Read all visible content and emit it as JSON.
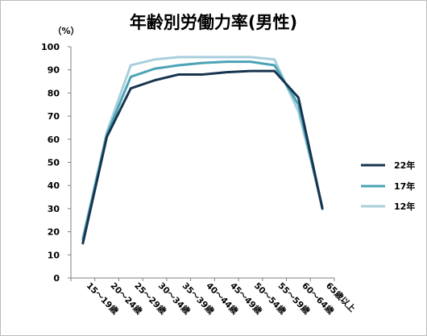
{
  "chart_data": {
    "type": "line",
    "title": "年齢別労働力率(男性)",
    "unit_label": "（%）",
    "ylim": [
      0,
      100
    ],
    "yticks": [
      0,
      10,
      20,
      30,
      40,
      50,
      60,
      70,
      80,
      90,
      100
    ],
    "grid": false,
    "legend_position": "right",
    "categories": [
      "15～19歳",
      "20～24歳",
      "25～29歳",
      "30～34歳",
      "35～39歳",
      "40～44歳",
      "45～49歳",
      "50～54歳",
      "55～59歳",
      "60～64歳",
      "65歳以上"
    ],
    "series": [
      {
        "name": "22年",
        "color": "#17344f",
        "values": [
          15,
          61,
          82,
          85.5,
          88,
          88,
          89,
          89.5,
          89.5,
          78,
          30
        ]
      },
      {
        "name": "17年",
        "color": "#4ba3b5",
        "values": [
          16.5,
          62,
          87,
          90.5,
          92,
          93,
          93.5,
          93.5,
          92,
          75,
          30
        ]
      },
      {
        "name": "12年",
        "color": "#a8cfdd",
        "values": [
          17.5,
          63,
          92,
          94.5,
          95.5,
          95.5,
          95.5,
          95.5,
          94.5,
          72,
          31
        ]
      }
    ]
  }
}
